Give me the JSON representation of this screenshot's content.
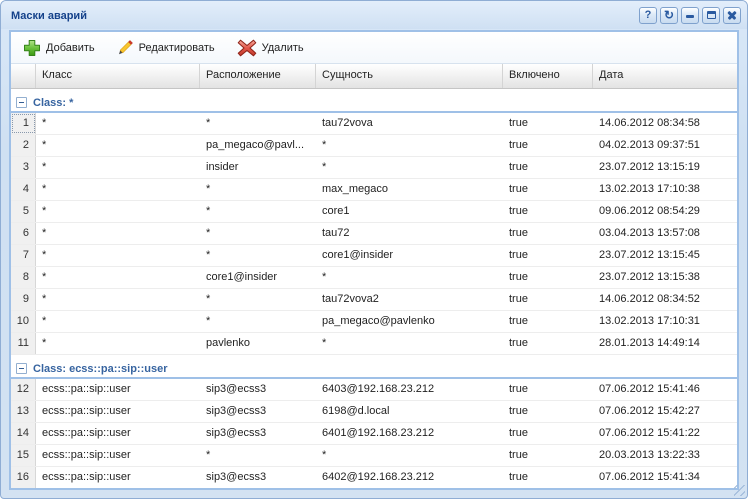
{
  "window": {
    "title": "Маски аварий",
    "controls": [
      {
        "name": "help",
        "glyph": "?"
      },
      {
        "name": "refresh",
        "glyph": "↻"
      },
      {
        "name": "minimize",
        "glyph": ""
      },
      {
        "name": "maximize",
        "glyph": ""
      },
      {
        "name": "close",
        "glyph": ""
      }
    ]
  },
  "toolbar": {
    "add_label": "Добавить",
    "edit_label": "Редактировать",
    "delete_label": "Удалить"
  },
  "grid": {
    "columns": [
      {
        "key": "numberer",
        "label": "",
        "width": 25
      },
      {
        "key": "class",
        "label": "Класс",
        "width": 164
      },
      {
        "key": "location",
        "label": "Расположение",
        "width": 116
      },
      {
        "key": "entity",
        "label": "Сущность",
        "width": 187
      },
      {
        "key": "enabled",
        "label": "Включено",
        "width": 90
      },
      {
        "key": "date",
        "label": "Дата",
        "width": 146
      }
    ],
    "focused_row_num": "1",
    "groups": [
      {
        "label": "Class: *",
        "rows": [
          [
            "1",
            "*",
            "*",
            "tau72vova",
            "true",
            "14.06.2012 08:34:58"
          ],
          [
            "2",
            "*",
            "pa_megaco@pavl...",
            "*",
            "true",
            "04.02.2013 09:37:51"
          ],
          [
            "3",
            "*",
            "insider",
            "*",
            "true",
            "23.07.2012 13:15:19"
          ],
          [
            "4",
            "*",
            "*",
            "max_megaco",
            "true",
            "13.02.2013 17:10:38"
          ],
          [
            "5",
            "*",
            "*",
            "core1",
            "true",
            "09.06.2012 08:54:29"
          ],
          [
            "6",
            "*",
            "*",
            "tau72",
            "true",
            "03.04.2013 13:57:08"
          ],
          [
            "7",
            "*",
            "*",
            "core1@insider",
            "true",
            "23.07.2012 13:15:45"
          ],
          [
            "8",
            "*",
            "core1@insider",
            "*",
            "true",
            "23.07.2012 13:15:38"
          ],
          [
            "9",
            "*",
            "*",
            "tau72vova2",
            "true",
            "14.06.2012 08:34:52"
          ],
          [
            "10",
            "*",
            "*",
            "pa_megaco@pavlenko",
            "true",
            "13.02.2013 17:10:31"
          ],
          [
            "11",
            "*",
            "pavlenko",
            "*",
            "true",
            "28.01.2013 14:49:14"
          ]
        ]
      },
      {
        "label": "Class: ecss::pa::sip::user",
        "rows": [
          [
            "12",
            "ecss::pa::sip::user",
            "sip3@ecss3",
            "6403@192.168.23.212",
            "true",
            "07.06.2012 15:41:46"
          ],
          [
            "13",
            "ecss::pa::sip::user",
            "sip3@ecss3",
            "6198@d.local",
            "true",
            "07.06.2012 15:42:27"
          ],
          [
            "14",
            "ecss::pa::sip::user",
            "sip3@ecss3",
            "6401@192.168.23.212",
            "true",
            "07.06.2012 15:41:22"
          ],
          [
            "15",
            "ecss::pa::sip::user",
            "*",
            "*",
            "true",
            "20.03.2013 13:22:33"
          ],
          [
            "16",
            "ecss::pa::sip::user",
            "sip3@ecss3",
            "6402@192.168.23.212",
            "true",
            "07.06.2012 15:41:34"
          ]
        ]
      }
    ]
  },
  "colors": {
    "accent_border": "#9fc0e7",
    "frame_bg": "#d2e1f3",
    "title_text": "#15428b",
    "group_text": "#3764a0",
    "header_border": "#d4d4d4",
    "row_border": "#ededed",
    "numberer_bg": "#f0f0f0",
    "add_green": "#3fa615",
    "edit_yellow": "#f8c630",
    "delete_red": "#c0392b",
    "control_glyph": "#2a5aa0"
  }
}
